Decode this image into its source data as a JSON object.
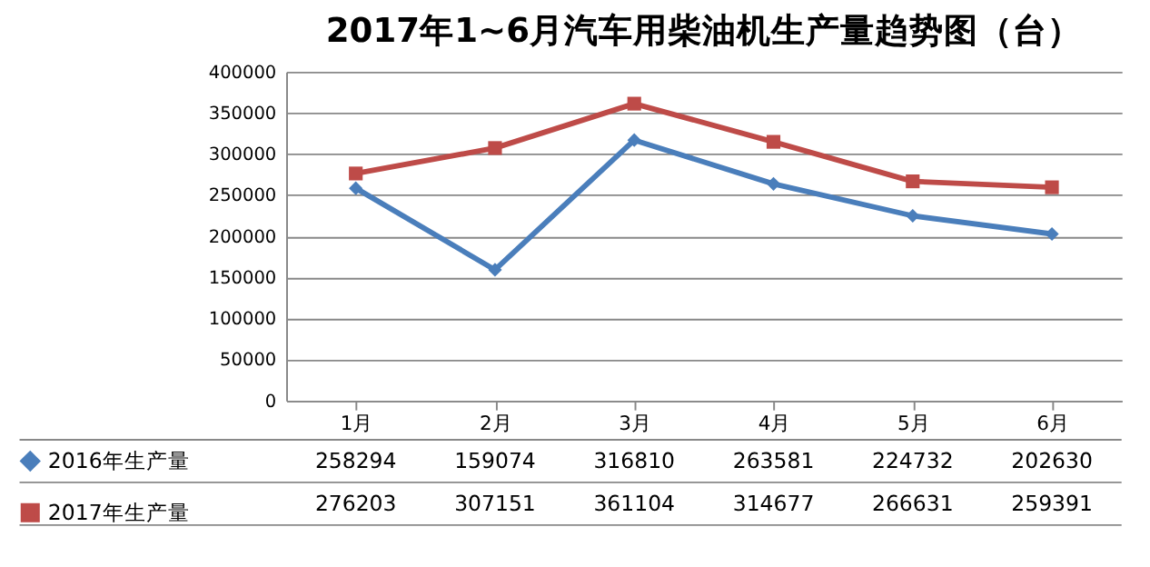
{
  "chart_data": {
    "type": "line",
    "title": "2017年1~6月汽车用柴油机生产量趋势图（台）",
    "categories": [
      "1月",
      "2月",
      "3月",
      "4月",
      "5月",
      "6月"
    ],
    "series": [
      {
        "name": "2016年生产量",
        "color": "#4a7ebb",
        "marker": "diamond",
        "values": [
          258294,
          159074,
          316810,
          263581,
          224732,
          202630
        ]
      },
      {
        "name": "2017年生产量",
        "color": "#be4b48",
        "marker": "square",
        "values": [
          276203,
          307151,
          361104,
          314677,
          266631,
          259391
        ]
      }
    ],
    "ylim": [
      0,
      400000
    ],
    "yticks": [
      0,
      50000,
      100000,
      150000,
      200000,
      250000,
      300000,
      350000,
      400000
    ],
    "grid": "y",
    "legend": "bottom left",
    "data_labels": true
  }
}
